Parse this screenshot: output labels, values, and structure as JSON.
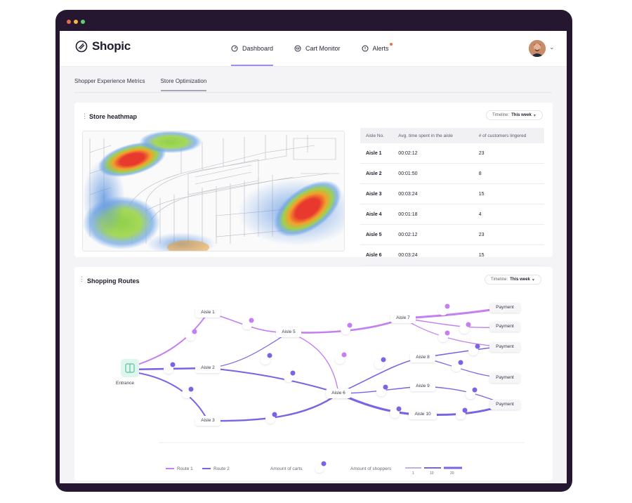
{
  "window": {
    "dot_colors": [
      "#e96b4e",
      "#f4b93b",
      "#5fcf74"
    ]
  },
  "brand": {
    "name": "Shopic",
    "color": "#1e1b2e",
    "accent": "#9a8cf0"
  },
  "nav": {
    "items": [
      {
        "label": "Dashboard",
        "icon": "dashboard-icon",
        "active": true
      },
      {
        "label": "Cart Monitor",
        "icon": "cart-monitor-icon",
        "active": false
      },
      {
        "label": "Alerts",
        "icon": "alert-icon",
        "active": false,
        "has_notification": true
      }
    ]
  },
  "subtabs": [
    {
      "label": "Shopper Experience Metrics",
      "active": false
    },
    {
      "label": "Store Optimization",
      "active": true
    }
  ],
  "heatmap_card": {
    "title": "Store heathmap",
    "timeline_label": "Timeline:",
    "timeline_value": "This week",
    "columns": [
      "Aisle No.",
      "Avg. time spent in the aisle",
      "# of customers lingered"
    ],
    "rows": [
      [
        "Aisle 1",
        "00:02:12",
        "23"
      ],
      [
        "Aisle 2",
        "00:01:50",
        "8"
      ],
      [
        "Aisle 3",
        "00:03:24",
        "15"
      ],
      [
        "Aisle 4",
        "00:01:18",
        "4"
      ],
      [
        "Aisle 5",
        "00:02:12",
        "23"
      ],
      [
        "Aisle 6",
        "00:03:24",
        "15"
      ]
    ]
  },
  "routes_card": {
    "title": "Shopping Routes",
    "timeline_label": "Timeline:",
    "timeline_value": "This week",
    "nodes": {
      "entrance": "Entrance",
      "aisle1": "Aisle 1",
      "aisle2": "Aisle 2",
      "aisle3": "Aisle 3",
      "aisle5": "Aisle 5",
      "aisle6": "Aisle 6",
      "aisle7": "Aisle 7",
      "aisle8": "Aisle 8",
      "aisle9": "Aisle 9",
      "aisle10": "Aisle 10",
      "payment": "Payment"
    },
    "route_colors": {
      "route1": "#c47ff0",
      "route2": "#7c63e6"
    },
    "legend": {
      "route1": "Route 1",
      "route2": "Route 2",
      "carts": "Amount of carts",
      "shoppers": "Amount of shoppers",
      "shopper_scale": [
        "1",
        "10",
        "20"
      ]
    }
  }
}
